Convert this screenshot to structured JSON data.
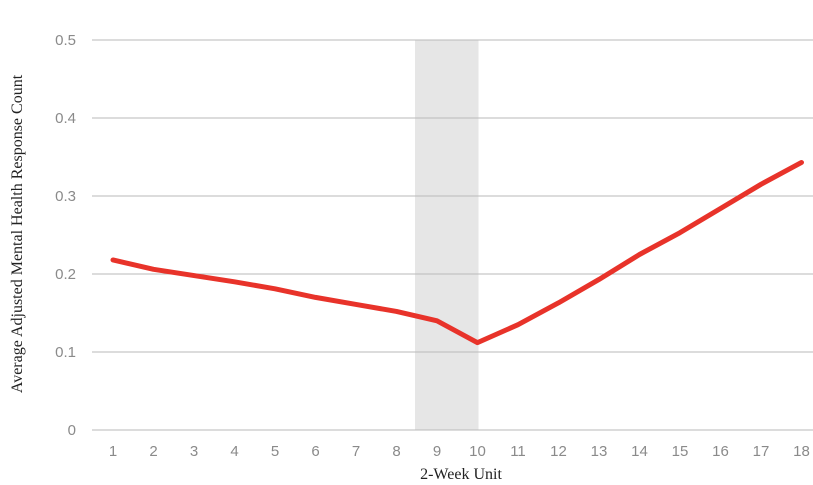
{
  "chart_data": {
    "type": "line",
    "xlabel": "2-Week Unit",
    "ylabel": "Average Adjusted Mental Health Response Count",
    "x": [
      1,
      2,
      3,
      4,
      5,
      6,
      7,
      8,
      9,
      10,
      11,
      12,
      13,
      14,
      15,
      16,
      17,
      18
    ],
    "x_tick_labels": [
      "1",
      "2",
      "3",
      "4",
      "5",
      "6",
      "7",
      "8",
      "9",
      "10",
      "11",
      "12",
      "13",
      "14",
      "15",
      "16",
      "17",
      "18"
    ],
    "y_tick_labels": [
      "0",
      "0.1",
      "0.2",
      "0.3",
      "0.4",
      "0.5"
    ],
    "ylim": [
      0,
      0.5
    ],
    "grid": "horizontal",
    "series": [
      {
        "values": [
          0.218,
          0.206,
          0.198,
          0.19,
          0.181,
          0.17,
          0.161,
          0.152,
          0.14,
          0.112,
          0.135,
          0.163,
          0.193,
          0.225,
          0.253,
          0.284,
          0.315,
          0.343
        ],
        "color": "#e8332a"
      }
    ],
    "highlight_band": {
      "x_from": 9,
      "x_to": 10,
      "color": "#e6e6e6"
    },
    "grid_color": "#b9b9b9"
  }
}
